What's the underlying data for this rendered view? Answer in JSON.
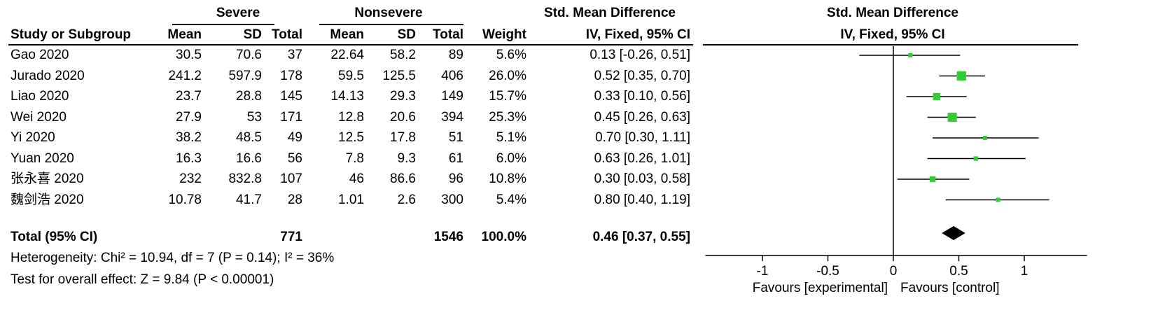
{
  "group_headers": {
    "experimental": "Severe",
    "control": "Nonsevere",
    "effect_table": "Std. Mean Difference",
    "effect_plot": "Std. Mean Difference"
  },
  "columns": {
    "study": "Study or Subgroup",
    "mean_e": "Mean",
    "sd_e": "SD",
    "total_e": "Total",
    "mean_c": "Mean",
    "sd_c": "SD",
    "total_c": "Total",
    "weight": "Weight",
    "ci": "IV, Fixed, 95% CI",
    "plot_method": "IV, Fixed, 95% CI"
  },
  "rows": [
    {
      "study": "Gao 2020",
      "mean_e": "30.5",
      "sd_e": "70.6",
      "total_e": "37",
      "mean_c": "22.64",
      "sd_c": "58.2",
      "total_c": "89",
      "weight": "5.6%",
      "ci": "0.13 [-0.26, 0.51]"
    },
    {
      "study": "Jurado 2020",
      "mean_e": "241.2",
      "sd_e": "597.9",
      "total_e": "178",
      "mean_c": "59.5",
      "sd_c": "125.5",
      "total_c": "406",
      "weight": "26.0%",
      "ci": "0.52 [0.35, 0.70]"
    },
    {
      "study": "Liao 2020",
      "mean_e": "23.7",
      "sd_e": "28.8",
      "total_e": "145",
      "mean_c": "14.13",
      "sd_c": "29.3",
      "total_c": "149",
      "weight": "15.7%",
      "ci": "0.33 [0.10, 0.56]"
    },
    {
      "study": "Wei 2020",
      "mean_e": "27.9",
      "sd_e": "53",
      "total_e": "171",
      "mean_c": "12.8",
      "sd_c": "20.6",
      "total_c": "394",
      "weight": "25.3%",
      "ci": "0.45 [0.26, 0.63]"
    },
    {
      "study": "Yi 2020",
      "mean_e": "38.2",
      "sd_e": "48.5",
      "total_e": "49",
      "mean_c": "12.5",
      "sd_c": "17.8",
      "total_c": "51",
      "weight": "5.1%",
      "ci": "0.70 [0.30, 1.11]"
    },
    {
      "study": "Yuan 2020",
      "mean_e": "16.3",
      "sd_e": "16.6",
      "total_e": "56",
      "mean_c": "7.8",
      "sd_c": "9.3",
      "total_c": "61",
      "weight": "6.0%",
      "ci": "0.63 [0.26, 1.01]"
    },
    {
      "study": "张永喜 2020",
      "mean_e": "232",
      "sd_e": "832.8",
      "total_e": "107",
      "mean_c": "46",
      "sd_c": "86.6",
      "total_c": "96",
      "weight": "10.8%",
      "ci": "0.30 [0.03, 0.58]"
    },
    {
      "study": "魏剑浩 2020",
      "mean_e": "10.78",
      "sd_e": "41.7",
      "total_e": "28",
      "mean_c": "1.01",
      "sd_c": "2.6",
      "total_c": "300",
      "weight": "5.4%",
      "ci": "0.80 [0.40, 1.19]"
    }
  ],
  "total": {
    "label": "Total (95% CI)",
    "total_e": "771",
    "total_c": "1546",
    "weight": "100.0%",
    "ci": "0.46 [0.37, 0.55]"
  },
  "heterogeneity": "Heterogeneity: Chi² = 10.94, df = 7 (P = 0.14); I² = 36%",
  "overall_effect": "Test for overall effect: Z = 9.84 (P < 0.00001)",
  "chart_data": {
    "type": "scatter",
    "subtype": "forest-plot",
    "title": "Std. Mean Difference",
    "subtitle": "IV, Fixed, 95% CI",
    "xlim": [
      -1.5,
      1.5
    ],
    "xticks": [
      -1,
      -0.5,
      0,
      0.5,
      1
    ],
    "xtick_labels": [
      "-1",
      "-0.5",
      "0",
      "0.5",
      "1"
    ],
    "favours_left": "Favours [experimental]",
    "favours_right": "Favours [control]",
    "colors": {
      "study_marker": "#33cc33",
      "summary_marker": "#000000",
      "ci_line": "#000000"
    },
    "studies": [
      {
        "name": "Gao 2020",
        "estimate": 0.13,
        "lower": -0.26,
        "upper": 0.51,
        "weight": 5.6
      },
      {
        "name": "Jurado 2020",
        "estimate": 0.52,
        "lower": 0.35,
        "upper": 0.7,
        "weight": 26.0
      },
      {
        "name": "Liao 2020",
        "estimate": 0.33,
        "lower": 0.1,
        "upper": 0.56,
        "weight": 15.7
      },
      {
        "name": "Wei 2020",
        "estimate": 0.45,
        "lower": 0.26,
        "upper": 0.63,
        "weight": 25.3
      },
      {
        "name": "Yi 2020",
        "estimate": 0.7,
        "lower": 0.3,
        "upper": 1.11,
        "weight": 5.1
      },
      {
        "name": "Yuan 2020",
        "estimate": 0.63,
        "lower": 0.26,
        "upper": 1.01,
        "weight": 6.0
      },
      {
        "name": "张永喜 2020",
        "estimate": 0.3,
        "lower": 0.03,
        "upper": 0.58,
        "weight": 10.8
      },
      {
        "name": "魏剑浩 2020",
        "estimate": 0.8,
        "lower": 0.4,
        "upper": 1.19,
        "weight": 5.4
      }
    ],
    "summary": {
      "name": "Total (95% CI)",
      "estimate": 0.46,
      "lower": 0.37,
      "upper": 0.55
    }
  }
}
